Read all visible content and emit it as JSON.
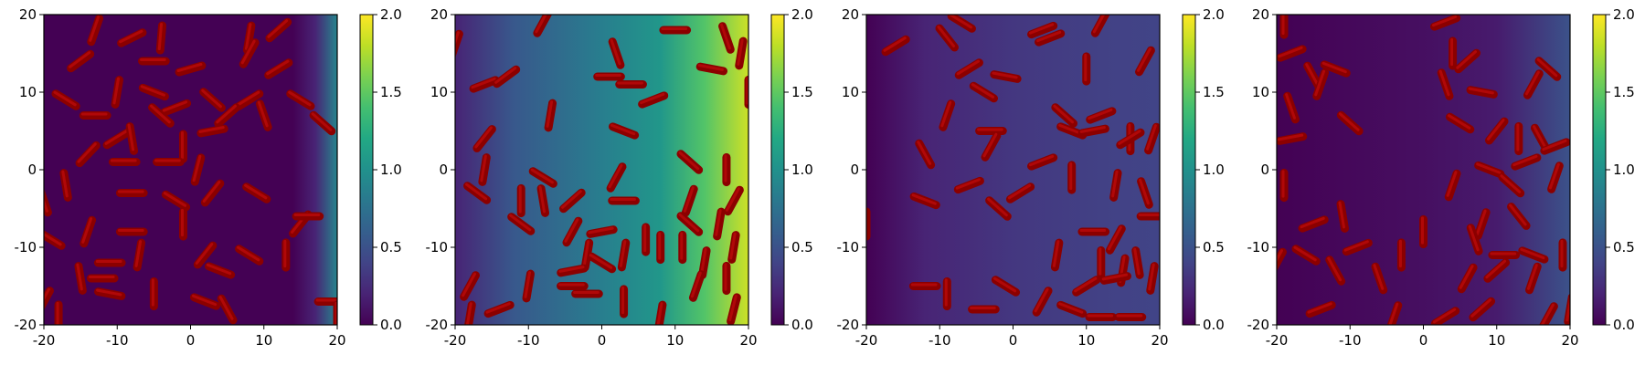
{
  "chart_data": {
    "type": "heatmap",
    "colormap": "viridis",
    "panels": [
      {
        "xlim": [
          -20,
          20
        ],
        "ylim": [
          -20,
          20
        ],
        "xticks": [
          "-20",
          "-10",
          "0",
          "10",
          "20"
        ],
        "yticks": [
          "-20",
          "-10",
          "0",
          "10",
          "20"
        ],
        "field_profile": [
          [
            -20,
            0.0
          ],
          [
            14,
            0.0
          ],
          [
            17,
            0.2
          ],
          [
            20,
            0.9
          ]
        ],
        "colorbar": {
          "range": [
            0.0,
            2.0
          ],
          "ticks": [
            "0.0",
            "0.5",
            "1.0",
            "1.5",
            "2.0"
          ]
        },
        "rods": [
          [
            -13,
            18,
            70
          ],
          [
            -8,
            17,
            25
          ],
          [
            -4,
            17,
            85
          ],
          [
            8,
            17,
            80
          ],
          [
            12,
            18,
            40
          ],
          [
            -15,
            14,
            35
          ],
          [
            -5,
            14,
            0
          ],
          [
            0,
            13,
            15
          ],
          [
            8,
            15,
            60
          ],
          [
            12,
            13,
            30
          ],
          [
            -17,
            9,
            150
          ],
          [
            -10,
            10,
            80
          ],
          [
            -5,
            10,
            160
          ],
          [
            -2,
            8,
            20
          ],
          [
            3,
            9,
            140
          ],
          [
            8,
            9,
            30
          ],
          [
            15,
            9,
            150
          ],
          [
            -13,
            7,
            0
          ],
          [
            -4,
            7,
            140
          ],
          [
            5,
            7,
            40
          ],
          [
            10,
            7,
            110
          ],
          [
            18,
            6,
            140
          ],
          [
            -10,
            4,
            30
          ],
          [
            -8,
            4,
            100
          ],
          [
            -1,
            3,
            90
          ],
          [
            3,
            5,
            10
          ],
          [
            -14,
            2,
            45
          ],
          [
            -9,
            1,
            0
          ],
          [
            -3,
            1,
            0
          ],
          [
            1,
            0,
            75
          ],
          [
            -17,
            -2,
            100
          ],
          [
            3,
            -3,
            50
          ],
          [
            9,
            -3,
            150
          ],
          [
            -20,
            -4,
            110
          ],
          [
            -8,
            -3,
            0
          ],
          [
            -2,
            -4,
            150
          ],
          [
            -19,
            -9,
            150
          ],
          [
            -14,
            -8,
            70
          ],
          [
            -8,
            -8,
            0
          ],
          [
            -1,
            -7,
            90
          ],
          [
            15,
            -7,
            50
          ],
          [
            16,
            -6,
            0
          ],
          [
            -11,
            -12,
            0
          ],
          [
            -7,
            -11,
            80
          ],
          [
            2,
            -11,
            50
          ],
          [
            4,
            -13,
            160
          ],
          [
            8,
            -11,
            150
          ],
          [
            13,
            -11,
            90
          ],
          [
            -15,
            -14,
            100
          ],
          [
            -12,
            -14,
            0
          ],
          [
            -5,
            -16,
            90
          ],
          [
            2,
            -17,
            160
          ],
          [
            5,
            -18,
            120
          ],
          [
            -20,
            -17,
            60
          ],
          [
            -18,
            -19,
            90
          ],
          [
            -11,
            -16,
            170
          ],
          [
            19,
            -17,
            0
          ],
          [
            20,
            -19,
            90
          ]
        ]
      },
      {
        "xlim": [
          -20,
          20
        ],
        "ylim": [
          -20,
          20
        ],
        "xticks": [
          "-20",
          "-10",
          "0",
          "10",
          "20"
        ],
        "yticks": [
          "-20",
          "-10",
          "0",
          "10",
          "20"
        ],
        "field_profile": [
          [
            -20,
            0.2
          ],
          [
            -12,
            0.55
          ],
          [
            0,
            0.85
          ],
          [
            8,
            1.05
          ],
          [
            14,
            1.45
          ],
          [
            20,
            1.85
          ]
        ],
        "colorbar": {
          "range": [
            0.0,
            2.0
          ],
          "ticks": [
            "0.0",
            "0.5",
            "1.0",
            "1.5",
            "2.0"
          ]
        },
        "rods": [
          [
            -20,
            16,
            70
          ],
          [
            -8,
            19,
            60
          ],
          [
            2,
            15,
            110
          ],
          [
            10,
            18,
            0
          ],
          [
            17,
            17,
            110
          ],
          [
            -16,
            11,
            20
          ],
          [
            -13,
            12,
            35
          ],
          [
            1,
            12,
            0
          ],
          [
            4,
            11,
            0
          ],
          [
            7,
            9,
            20
          ],
          [
            15,
            13,
            170
          ],
          [
            19,
            15,
            80
          ],
          [
            20,
            10,
            90
          ],
          [
            -16,
            4,
            50
          ],
          [
            -7,
            7,
            80
          ],
          [
            3,
            5,
            160
          ],
          [
            -16,
            0,
            80
          ],
          [
            -8,
            -1,
            150
          ],
          [
            2,
            -1,
            60
          ],
          [
            12,
            1,
            140
          ],
          [
            17,
            0,
            90
          ],
          [
            -17,
            -3,
            145
          ],
          [
            -11,
            -4,
            90
          ],
          [
            -8,
            -4,
            100
          ],
          [
            -4,
            -4,
            40
          ],
          [
            3,
            -4,
            0
          ],
          [
            12,
            -4,
            70
          ],
          [
            18,
            -4,
            60
          ],
          [
            -11,
            -7,
            145
          ],
          [
            -4,
            -8,
            60
          ],
          [
            0,
            -8,
            10
          ],
          [
            6,
            -9,
            90
          ],
          [
            8,
            -10,
            90
          ],
          [
            12,
            -7,
            140
          ],
          [
            16,
            -7,
            80
          ],
          [
            -2,
            -11,
            80
          ],
          [
            0,
            -12,
            150
          ],
          [
            3,
            -11,
            80
          ],
          [
            11,
            -10,
            90
          ],
          [
            14,
            -12,
            80
          ],
          [
            18,
            -10,
            80
          ],
          [
            -4,
            -13,
            10
          ],
          [
            -18,
            -15,
            60
          ],
          [
            -10,
            -15,
            80
          ],
          [
            -4,
            -15,
            0
          ],
          [
            -2,
            -16,
            0
          ],
          [
            13,
            -15,
            70
          ],
          [
            17,
            -14,
            90
          ],
          [
            -18,
            -19,
            80
          ],
          [
            -14,
            -18,
            20
          ],
          [
            3,
            -17,
            90
          ],
          [
            8,
            -19,
            80
          ],
          [
            18,
            -18,
            75
          ]
        ]
      },
      {
        "xlim": [
          -20,
          20
        ],
        "ylim": [
          -20,
          20
        ],
        "xticks": [
          "-20",
          "-10",
          "0",
          "10",
          "20"
        ],
        "yticks": [
          "-20",
          "-10",
          "0",
          "10",
          "20"
        ],
        "field_profile": [
          [
            -20,
            0.0
          ],
          [
            -12,
            0.2
          ],
          [
            0,
            0.32
          ],
          [
            12,
            0.38
          ],
          [
            20,
            0.4
          ]
        ],
        "colorbar": {
          "range": [
            0.0,
            2.0
          ],
          "ticks": [
            "0.0",
            "0.5",
            "1.0",
            "1.5",
            "2.0"
          ]
        },
        "rods": [
          [
            -16,
            16,
            30
          ],
          [
            -7,
            19,
            150
          ],
          [
            4,
            18,
            20
          ],
          [
            12,
            19,
            60
          ],
          [
            -9,
            17,
            130
          ],
          [
            -6,
            13,
            30
          ],
          [
            5,
            17,
            20
          ],
          [
            -4,
            10,
            150
          ],
          [
            -1,
            12,
            170
          ],
          [
            10,
            13,
            90
          ],
          [
            18,
            14,
            60
          ],
          [
            -9,
            7,
            70
          ],
          [
            -3,
            5,
            0
          ],
          [
            7,
            7,
            140
          ],
          [
            8,
            5,
            160
          ],
          [
            12,
            7,
            20
          ],
          [
            16,
            4,
            90
          ],
          [
            19,
            4,
            70
          ],
          [
            -3,
            3,
            60
          ],
          [
            4,
            1,
            20
          ],
          [
            11,
            5,
            10
          ],
          [
            16,
            4,
            30
          ],
          [
            -12,
            2,
            120
          ],
          [
            -6,
            -2,
            20
          ],
          [
            1,
            -3,
            30
          ],
          [
            8,
            -1,
            90
          ],
          [
            14,
            -2,
            80
          ],
          [
            18,
            -3,
            110
          ],
          [
            -12,
            -4,
            160
          ],
          [
            -2,
            -5,
            140
          ],
          [
            -20,
            -7,
            90
          ],
          [
            11,
            -8,
            0
          ],
          [
            14,
            -9,
            60
          ],
          [
            19,
            -6,
            0
          ],
          [
            6,
            -11,
            80
          ],
          [
            12,
            -12,
            90
          ],
          [
            15,
            -13,
            80
          ],
          [
            17,
            -12,
            100
          ],
          [
            -12,
            -15,
            0
          ],
          [
            -9,
            -16,
            90
          ],
          [
            -1,
            -15,
            150
          ],
          [
            4,
            -17,
            60
          ],
          [
            10,
            -15,
            30
          ],
          [
            14,
            -14,
            10
          ],
          [
            19,
            -14,
            80
          ],
          [
            -4,
            -18,
            0
          ],
          [
            8,
            -18,
            160
          ],
          [
            12,
            -19,
            0
          ],
          [
            16,
            -19,
            0
          ]
        ]
      },
      {
        "xlim": [
          -20,
          20
        ],
        "ylim": [
          -20,
          20
        ],
        "xticks": [
          "-20",
          "-10",
          "0",
          "10",
          "20"
        ],
        "yticks": [
          "-20",
          "-10",
          "0",
          "10",
          "20"
        ],
        "field_profile": [
          [
            -20,
            0.0
          ],
          [
            0,
            0.08
          ],
          [
            10,
            0.15
          ],
          [
            20,
            0.5
          ]
        ],
        "colorbar": {
          "range": [
            0.0,
            2.0
          ],
          "ticks": [
            "0.0",
            "0.5",
            "1.0",
            "1.5",
            "2.0"
          ]
        },
        "rods": [
          [
            -19,
            19,
            90
          ],
          [
            -18,
            15,
            20
          ],
          [
            3,
            19,
            20
          ],
          [
            4,
            15,
            90
          ],
          [
            6,
            14,
            40
          ],
          [
            -15,
            12,
            120
          ],
          [
            -14,
            11,
            70
          ],
          [
            -12,
            13,
            160
          ],
          [
            3,
            11,
            110
          ],
          [
            8,
            10,
            170
          ],
          [
            15,
            11,
            60
          ],
          [
            17,
            13,
            140
          ],
          [
            -18,
            8,
            110
          ],
          [
            -10,
            6,
            140
          ],
          [
            5,
            6,
            150
          ],
          [
            10,
            5,
            50
          ],
          [
            13,
            4,
            90
          ],
          [
            16,
            4,
            120
          ],
          [
            18,
            3,
            20
          ],
          [
            -18,
            4,
            10
          ],
          [
            9,
            0,
            160
          ],
          [
            14,
            1,
            20
          ],
          [
            -19,
            -2,
            90
          ],
          [
            4,
            -2,
            70
          ],
          [
            12,
            -2,
            140
          ],
          [
            18,
            -1,
            70
          ],
          [
            -15,
            -7,
            20
          ],
          [
            -11,
            -6,
            100
          ],
          [
            0,
            -8,
            90
          ],
          [
            8,
            -7,
            70
          ],
          [
            13,
            -6,
            130
          ],
          [
            -20,
            -12,
            60
          ],
          [
            -16,
            -11,
            150
          ],
          [
            -9,
            -10,
            20
          ],
          [
            -3,
            -11,
            90
          ],
          [
            7,
            -9,
            110
          ],
          [
            11,
            -11,
            0
          ],
          [
            15,
            -11,
            160
          ],
          [
            19,
            -11,
            90
          ],
          [
            -12,
            -13,
            120
          ],
          [
            -6,
            -14,
            110
          ],
          [
            6,
            -14,
            60
          ],
          [
            10,
            -13,
            40
          ],
          [
            15,
            -14,
            70
          ],
          [
            -14,
            -18,
            20
          ],
          [
            -4,
            -19,
            70
          ],
          [
            3,
            -19,
            30
          ],
          [
            8,
            -18,
            40
          ],
          [
            17,
            -19,
            60
          ],
          [
            20,
            -18,
            80
          ]
        ]
      }
    ]
  }
}
